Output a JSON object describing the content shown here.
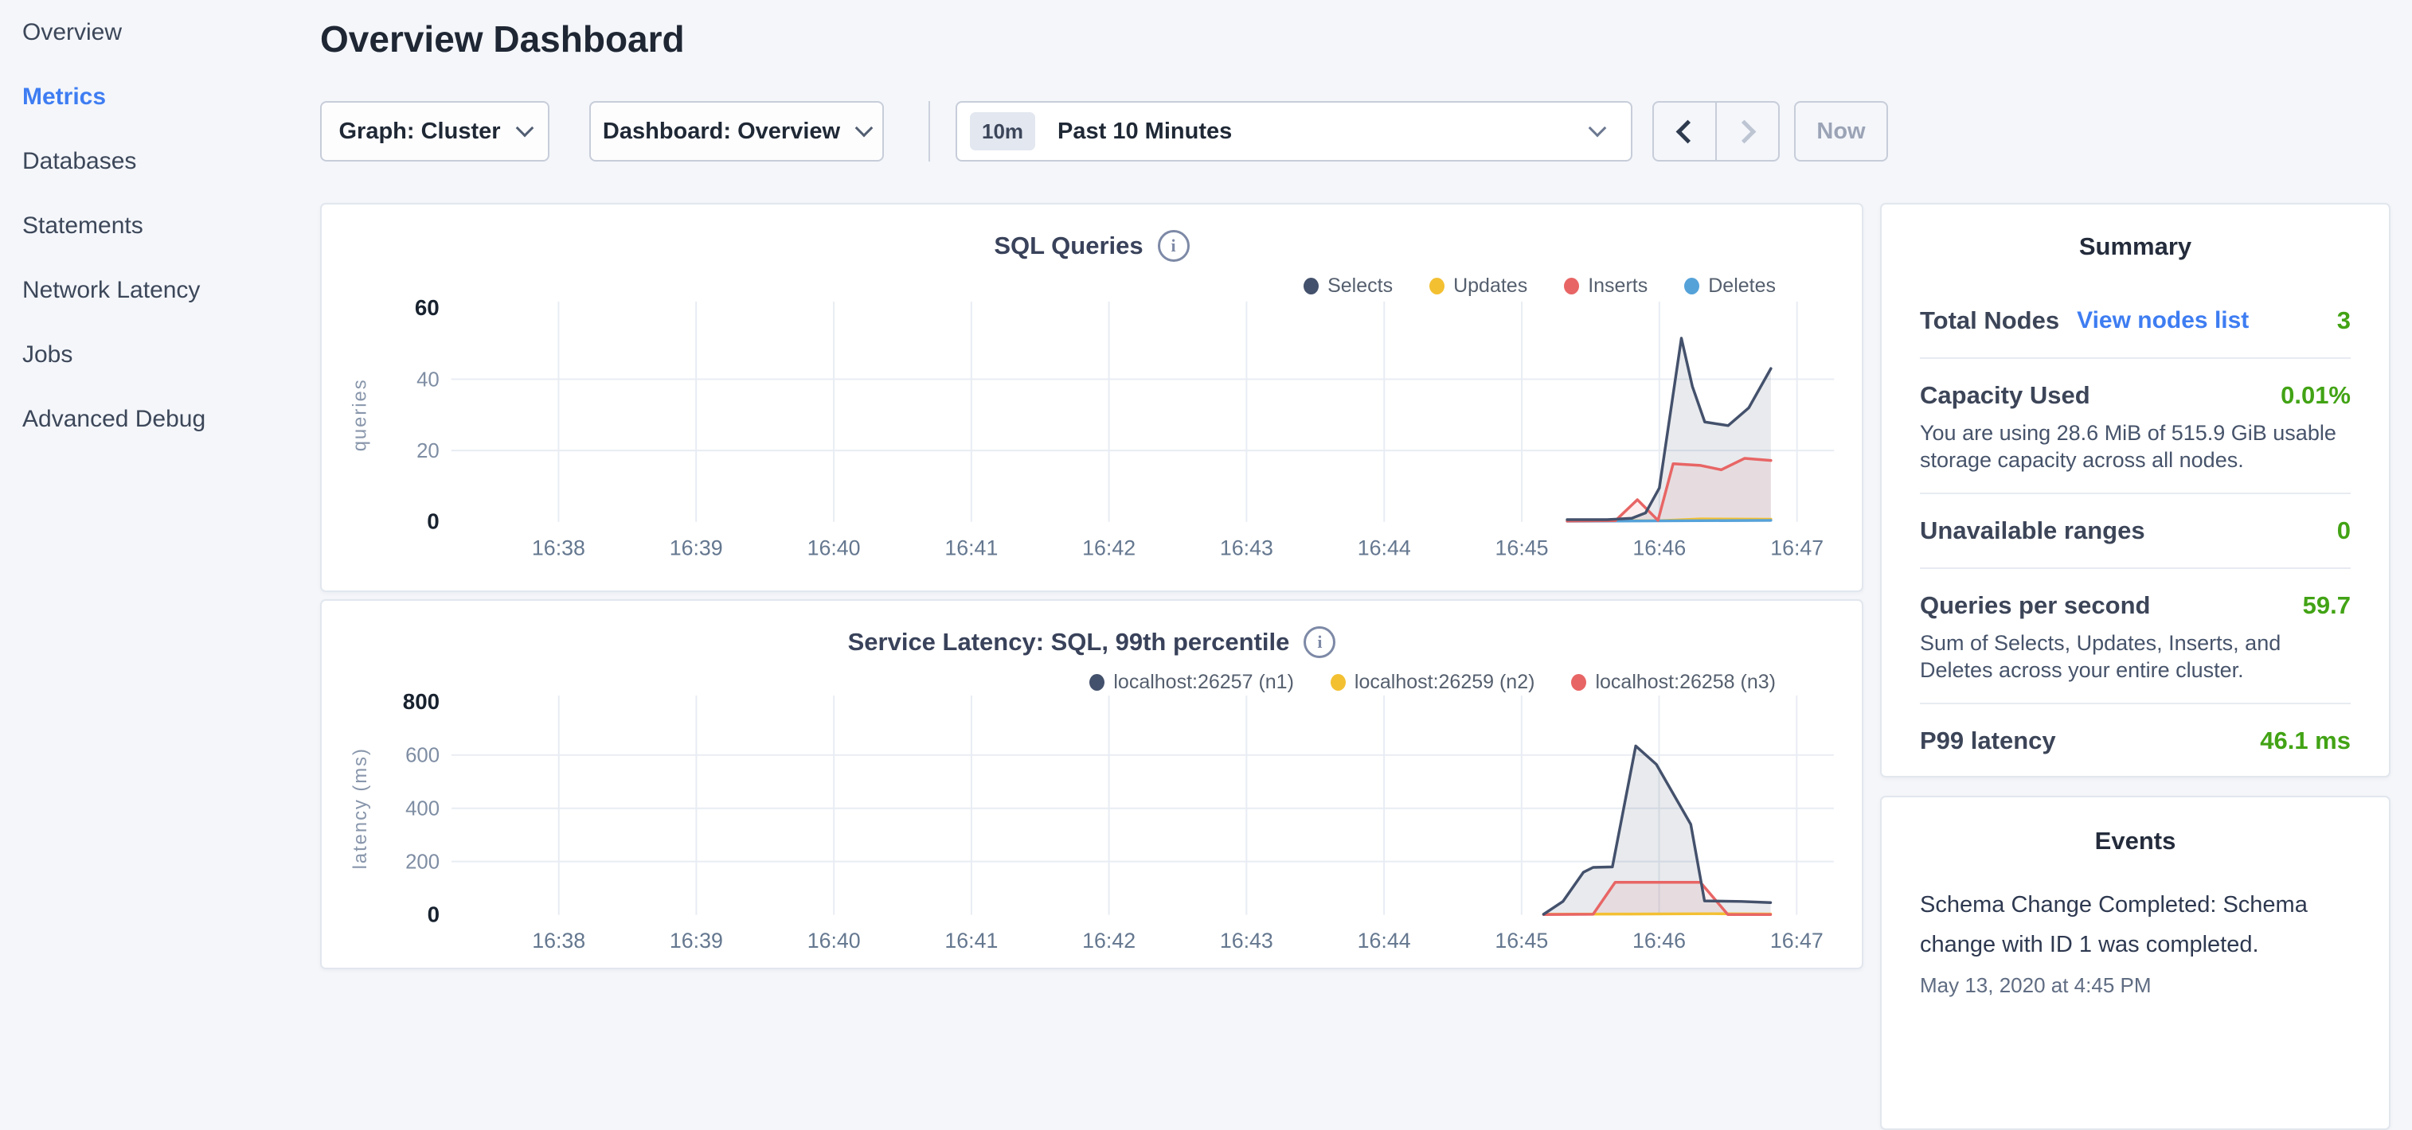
{
  "colors": {
    "background": "#f4f6fa",
    "card_border": "#e2e7ee",
    "accent_blue": "#3e7df2",
    "status_green": "#42a315",
    "series_navy": "#44516c",
    "series_yellow": "#f3c032",
    "series_red": "#e86565",
    "series_light_blue": "#55a2d9",
    "grid": "#e8ecf3"
  },
  "sidebar": {
    "items": [
      {
        "label": "Overview",
        "active": false
      },
      {
        "label": "Metrics",
        "active": true
      },
      {
        "label": "Databases",
        "active": false
      },
      {
        "label": "Statements",
        "active": false
      },
      {
        "label": "Network Latency",
        "active": false
      },
      {
        "label": "Jobs",
        "active": false
      },
      {
        "label": "Advanced Debug",
        "active": false
      }
    ]
  },
  "header": {
    "title": "Overview Dashboard"
  },
  "toolbar": {
    "graph_label": "Graph: Cluster",
    "dashboard_label": "Dashboard: Overview",
    "time_badge": "10m",
    "time_label": "Past 10 Minutes",
    "now_label": "Now"
  },
  "chart_data": [
    {
      "type": "area",
      "title": "SQL Queries",
      "ylabel": "queries",
      "ylim": [
        0,
        60
      ],
      "y_ticks": [
        0,
        20,
        40,
        60
      ],
      "xlim": [
        37.22,
        47.27
      ],
      "x_ticks": [
        {
          "v": 38,
          "label": "16:38"
        },
        {
          "v": 39,
          "label": "16:39"
        },
        {
          "v": 40,
          "label": "16:40"
        },
        {
          "v": 41,
          "label": "16:41"
        },
        {
          "v": 42,
          "label": "16:42"
        },
        {
          "v": 43,
          "label": "16:43"
        },
        {
          "v": 44,
          "label": "16:44"
        },
        {
          "v": 45,
          "label": "16:45"
        },
        {
          "v": 46,
          "label": "16:46"
        },
        {
          "v": 47,
          "label": "16:47"
        }
      ],
      "grid": true,
      "legend_position": "top-right",
      "series": [
        {
          "name": "Selects",
          "color": "#44516c",
          "fill": "rgba(68,81,108,0.12)",
          "z": 4,
          "points": [
            [
              45.33,
              0.6
            ],
            [
              45.62,
              0.6
            ],
            [
              45.8,
              1.0
            ],
            [
              45.9,
              2.5
            ],
            [
              46.0,
              9.5
            ],
            [
              46.16,
              51.5
            ],
            [
              46.24,
              38
            ],
            [
              46.33,
              28
            ],
            [
              46.5,
              27
            ],
            [
              46.65,
              32
            ],
            [
              46.81,
              43
            ]
          ]
        },
        {
          "name": "Updates",
          "color": "#f3c032",
          "z": 1,
          "points": [
            [
              45.33,
              0.3
            ],
            [
              46.0,
              0.3
            ],
            [
              46.3,
              0.8
            ],
            [
              46.81,
              0.7
            ]
          ]
        },
        {
          "name": "Inserts",
          "color": "#e86565",
          "fill": "rgba(232,101,101,0.10)",
          "z": 3,
          "points": [
            [
              45.33,
              0.2
            ],
            [
              45.68,
              0.3
            ],
            [
              45.84,
              6.2
            ],
            [
              45.99,
              0.4
            ],
            [
              46.1,
              16.3
            ],
            [
              46.3,
              15.8
            ],
            [
              46.45,
              14.6
            ],
            [
              46.62,
              17.8
            ],
            [
              46.81,
              17.2
            ]
          ]
        },
        {
          "name": "Deletes",
          "color": "#55a2d9",
          "z": 2,
          "points": [
            [
              45.33,
              0.15
            ],
            [
              46.81,
              0.4
            ]
          ]
        }
      ]
    },
    {
      "type": "area",
      "title": "Service Latency: SQL, 99th percentile",
      "ylabel": "latency (ms)",
      "ylim": [
        0,
        800
      ],
      "y_ticks": [
        0,
        200,
        400,
        600,
        800
      ],
      "xlim": [
        37.22,
        47.27
      ],
      "x_ticks": [
        {
          "v": 38,
          "label": "16:38"
        },
        {
          "v": 39,
          "label": "16:39"
        },
        {
          "v": 40,
          "label": "16:40"
        },
        {
          "v": 41,
          "label": "16:41"
        },
        {
          "v": 42,
          "label": "16:42"
        },
        {
          "v": 43,
          "label": "16:43"
        },
        {
          "v": 44,
          "label": "16:44"
        },
        {
          "v": 45,
          "label": "16:45"
        },
        {
          "v": 46,
          "label": "16:46"
        },
        {
          "v": 47,
          "label": "16:47"
        }
      ],
      "grid": true,
      "legend_position": "top-right",
      "series": [
        {
          "name": "localhost:26257 (n1)",
          "color": "#44516c",
          "fill": "rgba(68,81,108,0.12)",
          "z": 3,
          "points": [
            [
              45.16,
              2
            ],
            [
              45.3,
              50
            ],
            [
              45.45,
              160
            ],
            [
              45.52,
              178
            ],
            [
              45.66,
              180
            ],
            [
              45.83,
              634
            ],
            [
              45.98,
              565
            ],
            [
              46.23,
              340
            ],
            [
              46.33,
              52
            ],
            [
              46.6,
              50
            ],
            [
              46.81,
              46
            ]
          ]
        },
        {
          "name": "localhost:26259 (n2)",
          "color": "#f3c032",
          "z": 1,
          "points": [
            [
              45.16,
              2
            ],
            [
              45.8,
              3
            ],
            [
              46.4,
              4
            ],
            [
              46.81,
              3
            ]
          ]
        },
        {
          "name": "localhost:26258 (n3)",
          "color": "#e86565",
          "fill": "rgba(232,101,101,0.10)",
          "z": 2,
          "points": [
            [
              45.16,
              1
            ],
            [
              45.52,
              2
            ],
            [
              45.68,
              122
            ],
            [
              46.3,
              122
            ],
            [
              46.5,
              1
            ],
            [
              46.81,
              1
            ]
          ]
        }
      ]
    }
  ],
  "summary": {
    "title": "Summary",
    "rows": [
      {
        "label": "Total Nodes",
        "link": "View nodes list",
        "value": "3"
      },
      {
        "label": "Capacity Used",
        "value": "0.01%",
        "description": "You are using 28.6 MiB of 515.9 GiB usable storage capacity across all nodes."
      },
      {
        "label": "Unavailable ranges",
        "value": "0"
      },
      {
        "label": "Queries per second",
        "value": "59.7",
        "description": "Sum of Selects, Updates, Inserts, and Deletes across your entire cluster."
      },
      {
        "label": "P99 latency",
        "value": "46.1 ms"
      }
    ]
  },
  "events": {
    "title": "Events",
    "items": [
      {
        "text": "Schema Change Completed: Schema change with ID 1 was completed.",
        "time": "May 13, 2020 at 4:45 PM"
      }
    ]
  }
}
